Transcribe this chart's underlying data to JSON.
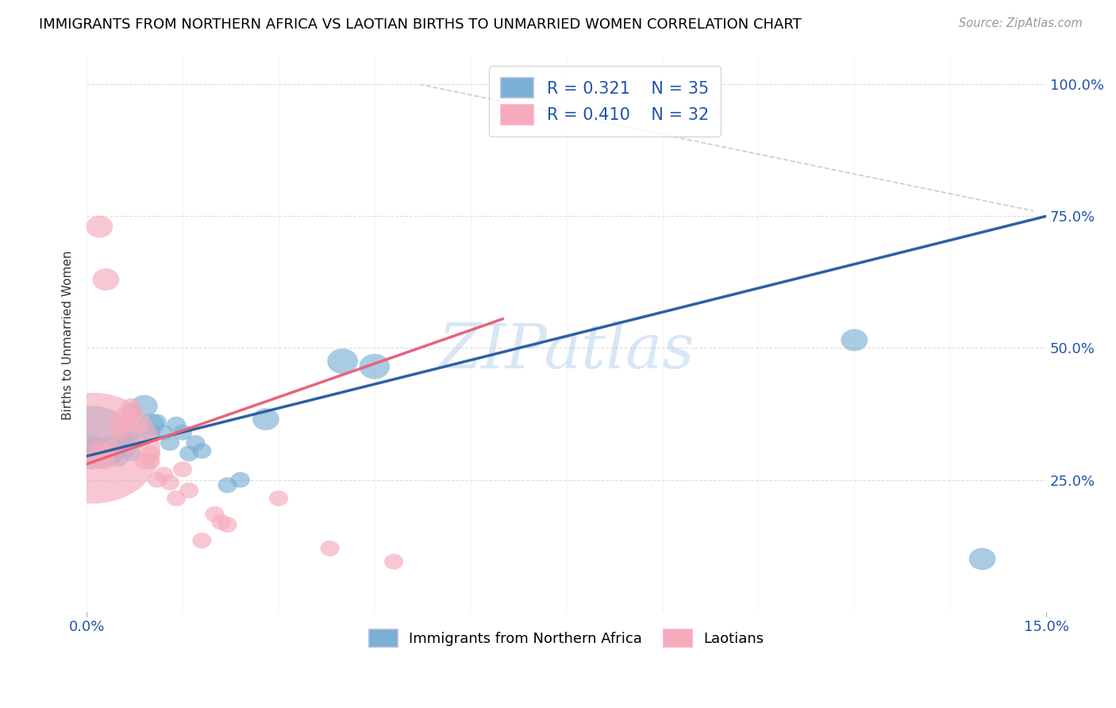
{
  "title": "IMMIGRANTS FROM NORTHERN AFRICA VS LAOTIAN BIRTHS TO UNMARRIED WOMEN CORRELATION CHART",
  "source_text": "Source: ZipAtlas.com",
  "ylabel": "Births to Unmarried Women",
  "xlim": [
    0.0,
    0.15
  ],
  "ylim": [
    0.0,
    1.05
  ],
  "ytick_labels": [
    "25.0%",
    "50.0%",
    "75.0%",
    "100.0%"
  ],
  "ytick_values": [
    0.25,
    0.5,
    0.75,
    1.0
  ],
  "xtick_labels": [
    "0.0%",
    "15.0%"
  ],
  "xtick_values": [
    0.0,
    0.15
  ],
  "watermark": "ZIPatlas",
  "legend_blue_r": "0.321",
  "legend_blue_n": "35",
  "legend_pink_r": "0.410",
  "legend_pink_n": "32",
  "blue_color": "#7BAFD4",
  "pink_color": "#F4ABBB",
  "blue_line_color": "#2E5FA3",
  "pink_line_color": "#E8637A",
  "diagonal_line_color": "#CCCCCC",
  "blue_line": {
    "x0": 0.0,
    "y0": 0.295,
    "x1": 0.15,
    "y1": 0.75
  },
  "pink_line": {
    "x0": 0.0,
    "y0": 0.28,
    "x1": 0.065,
    "y1": 0.555
  },
  "diag_line": {
    "x0": 0.052,
    "y0": 1.0,
    "x1": 0.148,
    "y1": 0.76
  },
  "blue_scatter": [
    [
      0.001,
      0.33
    ],
    [
      0.001,
      0.32
    ],
    [
      0.001,
      0.3
    ],
    [
      0.002,
      0.315
    ],
    [
      0.002,
      0.295
    ],
    [
      0.003,
      0.31
    ],
    [
      0.003,
      0.295
    ],
    [
      0.004,
      0.32
    ],
    [
      0.004,
      0.295
    ],
    [
      0.005,
      0.31
    ],
    [
      0.005,
      0.29
    ],
    [
      0.006,
      0.305
    ],
    [
      0.006,
      0.32
    ],
    [
      0.007,
      0.34
    ],
    [
      0.007,
      0.38
    ],
    [
      0.007,
      0.3
    ],
    [
      0.008,
      0.325
    ],
    [
      0.009,
      0.39
    ],
    [
      0.01,
      0.355
    ],
    [
      0.01,
      0.34
    ],
    [
      0.011,
      0.36
    ],
    [
      0.012,
      0.34
    ],
    [
      0.013,
      0.32
    ],
    [
      0.014,
      0.355
    ],
    [
      0.015,
      0.34
    ],
    [
      0.016,
      0.3
    ],
    [
      0.017,
      0.32
    ],
    [
      0.018,
      0.305
    ],
    [
      0.022,
      0.24
    ],
    [
      0.024,
      0.25
    ],
    [
      0.028,
      0.365
    ],
    [
      0.04,
      0.475
    ],
    [
      0.045,
      0.465
    ],
    [
      0.12,
      0.515
    ],
    [
      0.14,
      0.1
    ]
  ],
  "blue_sizes": [
    200,
    50,
    50,
    50,
    50,
    50,
    50,
    50,
    50,
    50,
    50,
    50,
    50,
    50,
    50,
    50,
    50,
    70,
    70,
    50,
    50,
    50,
    50,
    50,
    50,
    50,
    50,
    50,
    50,
    50,
    70,
    80,
    80,
    70,
    70
  ],
  "pink_scatter": [
    [
      0.001,
      0.31
    ],
    [
      0.001,
      0.29
    ],
    [
      0.002,
      0.31
    ],
    [
      0.002,
      0.295
    ],
    [
      0.003,
      0.3
    ],
    [
      0.003,
      0.285
    ],
    [
      0.004,
      0.31
    ],
    [
      0.005,
      0.34
    ],
    [
      0.005,
      0.36
    ],
    [
      0.006,
      0.375
    ],
    [
      0.006,
      0.355
    ],
    [
      0.007,
      0.39
    ],
    [
      0.007,
      0.37
    ],
    [
      0.008,
      0.35
    ],
    [
      0.009,
      0.285
    ],
    [
      0.01,
      0.3
    ],
    [
      0.01,
      0.285
    ],
    [
      0.011,
      0.25
    ],
    [
      0.012,
      0.26
    ],
    [
      0.013,
      0.245
    ],
    [
      0.014,
      0.215
    ],
    [
      0.015,
      0.27
    ],
    [
      0.016,
      0.23
    ],
    [
      0.018,
      0.135
    ],
    [
      0.02,
      0.185
    ],
    [
      0.021,
      0.17
    ],
    [
      0.022,
      0.165
    ],
    [
      0.03,
      0.215
    ],
    [
      0.038,
      0.12
    ],
    [
      0.048,
      0.095
    ],
    [
      0.002,
      0.73
    ],
    [
      0.003,
      0.63
    ]
  ],
  "pink_sizes": [
    350,
    50,
    50,
    50,
    50,
    50,
    50,
    50,
    50,
    50,
    50,
    50,
    50,
    50,
    50,
    50,
    50,
    50,
    50,
    50,
    50,
    50,
    50,
    50,
    50,
    50,
    50,
    50,
    50,
    50,
    70,
    70
  ]
}
